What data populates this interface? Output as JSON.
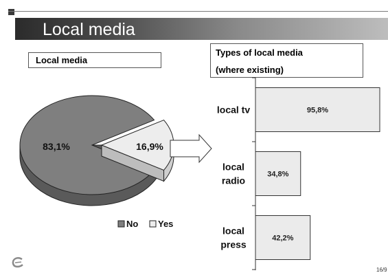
{
  "slide": {
    "title": "Local media",
    "page_number": "16/9"
  },
  "left_box_label": "Local media",
  "right_box": {
    "line1": "Types of local media",
    "line2": "(where existing)"
  },
  "chart_data": [
    {
      "type": "pie",
      "title": "Local media",
      "slices": [
        {
          "label": "No",
          "value": 83.1,
          "display": "83,1%",
          "color": "#7f7f7f"
        },
        {
          "label": "Yes",
          "value": 16.9,
          "display": "16,9%",
          "color": "#ededed"
        }
      ],
      "legend": [
        "No",
        "Yes"
      ],
      "legend_position": "bottom"
    },
    {
      "type": "bar",
      "orientation": "horizontal",
      "title": "Types of local media (where existing)",
      "categories": [
        [
          "local tv"
        ],
        [
          "local",
          "radio"
        ],
        [
          "local",
          "press"
        ]
      ],
      "values": [
        95.8,
        34.8,
        42.2
      ],
      "labels": [
        "95,8%",
        "34,8%",
        "42,2%"
      ],
      "xlim": [
        0,
        100
      ],
      "color": "#ebebeb"
    }
  ],
  "colors": {
    "accent": "#7f7f7f",
    "bar_fill": "#ebebeb"
  },
  "icons": {
    "logo": "council-logo-icon"
  }
}
